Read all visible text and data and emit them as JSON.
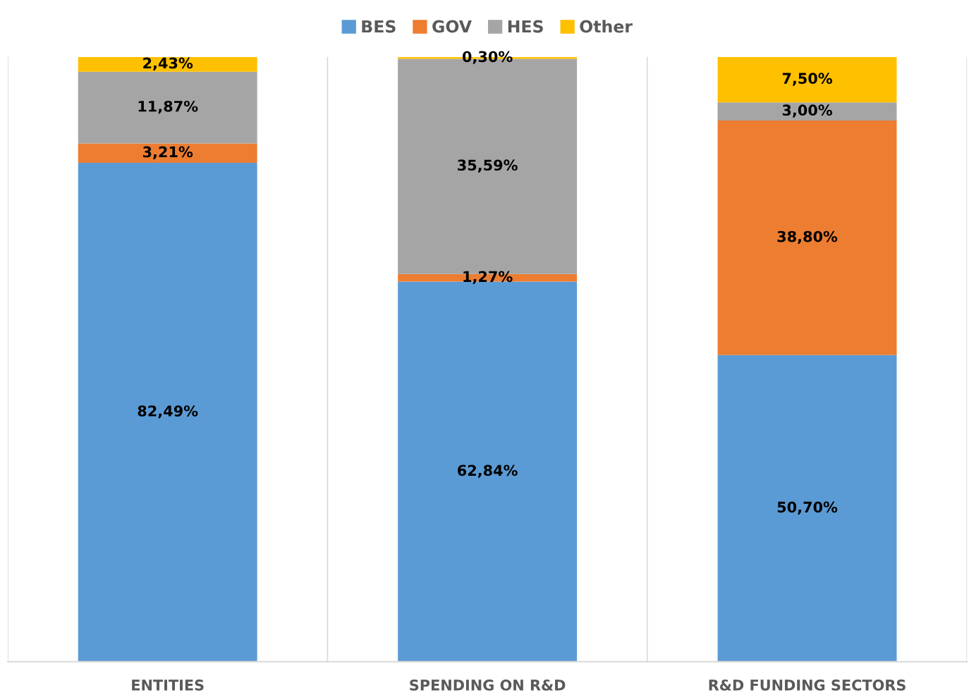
{
  "chart_data": {
    "type": "bar",
    "stacked": true,
    "data_labels": true,
    "grid": "x",
    "legend": "top",
    "categories": [
      "ENTITIES",
      "SPENDING ON R&D",
      "R&D FUNDING SECTORS"
    ],
    "series": [
      {
        "name": "BES",
        "color": "#5b9bd5",
        "values": [
          82.49,
          62.84,
          50.7
        ],
        "value_labels": [
          "82,49%",
          "62,84%",
          "50,70%"
        ]
      },
      {
        "name": "GOV",
        "color": "#ed7d31",
        "values": [
          3.21,
          1.27,
          38.8
        ],
        "value_labels": [
          "3,21%",
          "1,27%",
          "38,80%"
        ]
      },
      {
        "name": "HES",
        "color": "#a5a5a5",
        "values": [
          11.87,
          35.59,
          3.0
        ],
        "value_labels": [
          "11,87%",
          "35,59%",
          "3,00%"
        ]
      },
      {
        "name": "Other",
        "color": "#ffc000",
        "values": [
          2.43,
          0.3,
          7.5
        ],
        "value_labels": [
          "2,43%",
          "0,30%",
          "7,50%"
        ]
      }
    ]
  }
}
